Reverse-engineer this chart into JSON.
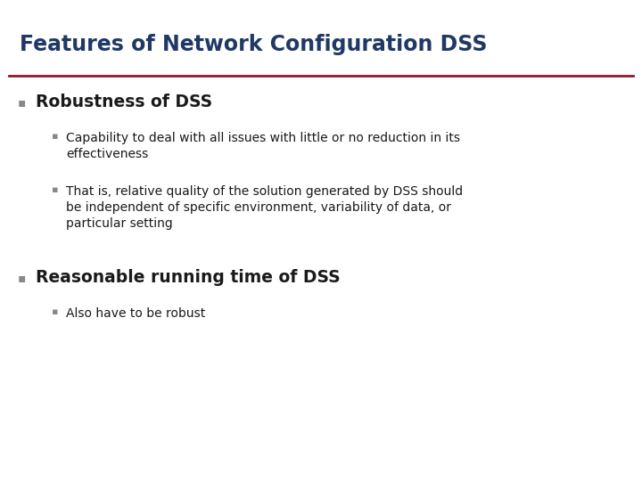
{
  "title": "Features of Network Configuration DSS",
  "title_color": "#1F3864",
  "title_fontsize": 17,
  "line_color": "#8B1A2D",
  "background_color": "#FFFFFF",
  "bullet1_text": "Robustness of DSS",
  "bullet1_color": "#1A1A1A",
  "bullet1_fontsize": 13.5,
  "sub_bullet1a": "Capability to deal with all issues with little or no reduction in its\neffectiveness",
  "sub_bullet1b": "That is, relative quality of the solution generated by DSS should\nbe independent of specific environment, variability of data, or\nparticular setting",
  "sub_bullet_color": "#1A1A1A",
  "sub_bullet_fontsize": 10,
  "bullet2_text": "Reasonable running time of DSS",
  "bullet2_color": "#1A1A1A",
  "bullet2_fontsize": 13.5,
  "sub_bullet2a": "Also have to be robust",
  "bullet_marker_color": "#888888",
  "sub_bullet_marker_color": "#888888"
}
